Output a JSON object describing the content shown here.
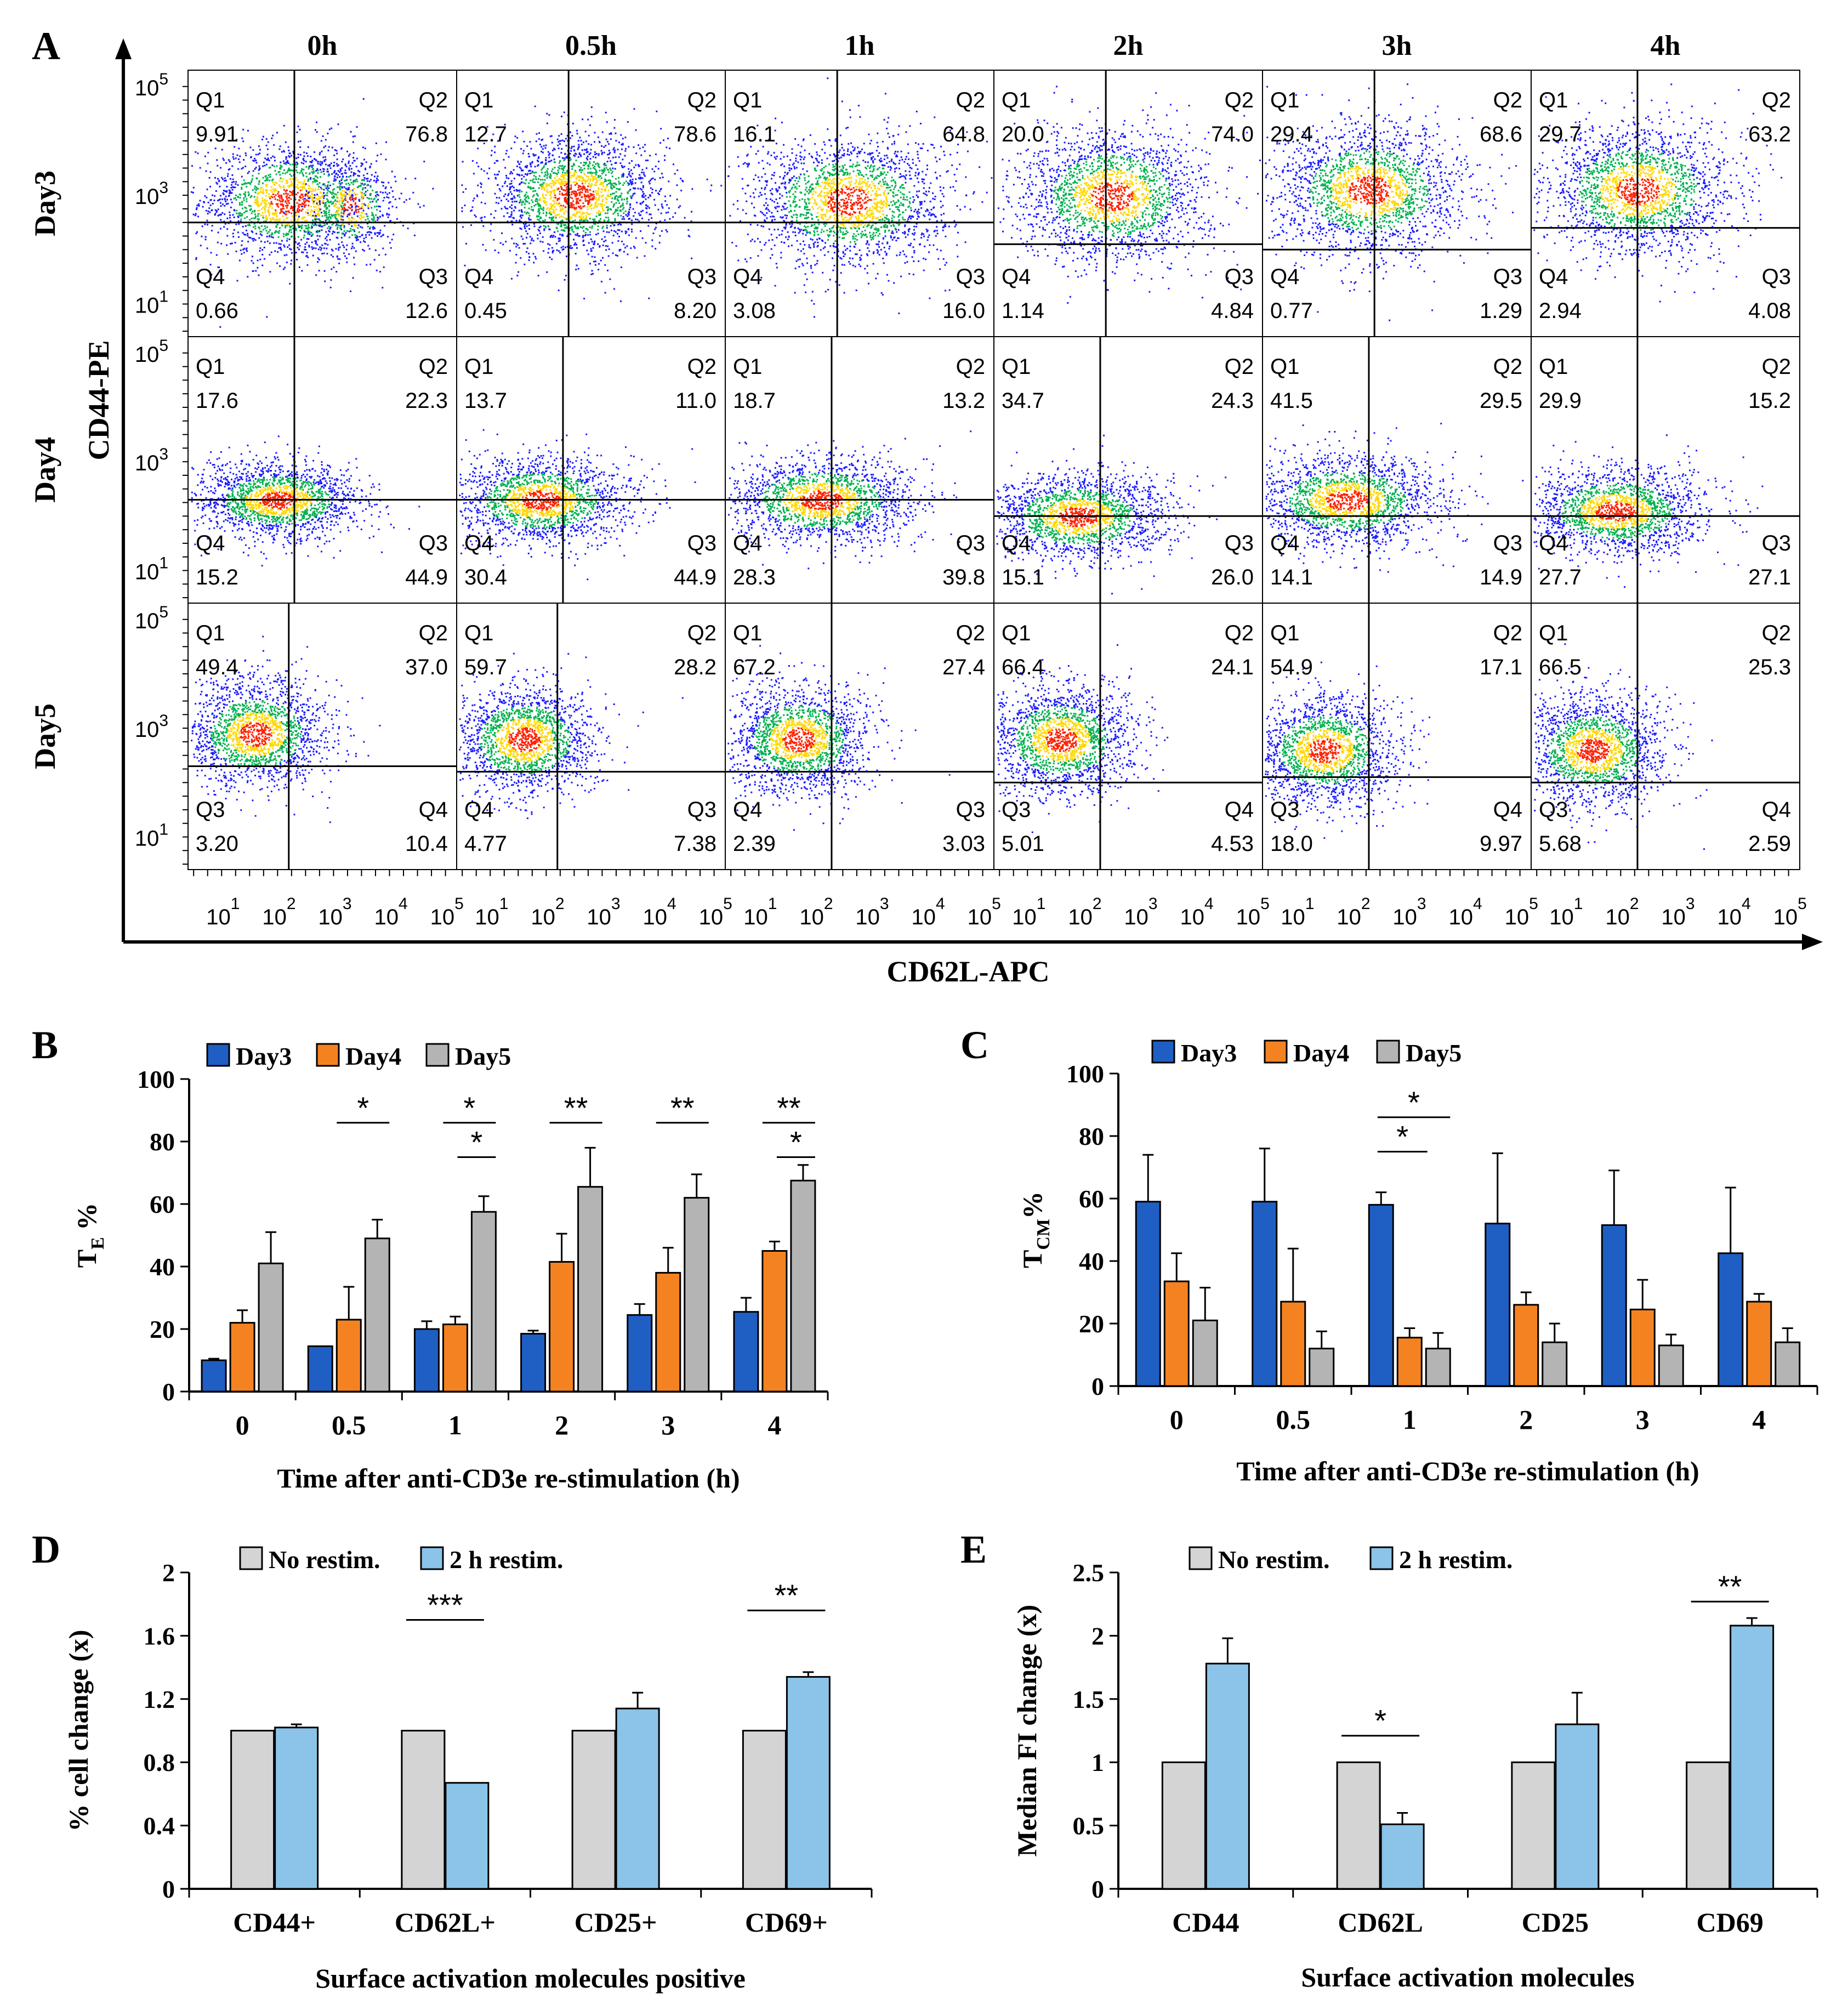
{
  "colors": {
    "day3": "#1f5fc4",
    "day4": "#f58220",
    "day5": "#b4b4b4",
    "norestim": "#d4d4d4",
    "restim": "#8cc3e8",
    "flow_low": "#1a1aff",
    "flow_mid": "#00b050",
    "flow_high": "#ffd700",
    "flow_peak": "#ff2000"
  },
  "chart_data": [
    {
      "panel": "A",
      "type": "scatter",
      "subtype": "flow-cytometry-grid",
      "xlabel": "CD62L-APC",
      "ylabel": "CD44-PE",
      "columns": [
        "0h",
        "0.5h",
        "1h",
        "2h",
        "3h",
        "4h"
      ],
      "rows": [
        "Day3",
        "Day4",
        "Day5"
      ],
      "y_ticks": [
        {
          "base": "10",
          "exp": "5",
          "v": 5
        },
        {
          "base": "10",
          "exp": "3",
          "v": 3
        },
        {
          "base": "10",
          "exp": "1",
          "v": 1
        }
      ],
      "x_ticks": [
        {
          "base": "10",
          "exp": "1",
          "v": 1
        },
        {
          "base": "10",
          "exp": "2",
          "v": 2
        },
        {
          "base": "10",
          "exp": "3",
          "v": 3
        },
        {
          "base": "10",
          "exp": "4",
          "v": 4
        },
        {
          "base": "10",
          "exp": "5",
          "v": 5
        }
      ],
      "axis_range": {
        "x": [
          0.4,
          5.2
        ],
        "y": [
          0.4,
          5.3
        ]
      },
      "gates": [
        [
          [
            2.3,
            2.5
          ],
          [
            2.4,
            2.5
          ],
          [
            2.4,
            2.5
          ],
          [
            2.4,
            2.1
          ],
          [
            2.4,
            2.0
          ],
          [
            2.3,
            2.4
          ]
        ],
        [
          [
            2.3,
            2.3
          ],
          [
            2.3,
            2.3
          ],
          [
            2.3,
            2.3
          ],
          [
            2.3,
            2.0
          ],
          [
            2.3,
            2.0
          ],
          [
            2.3,
            2.0
          ]
        ],
        [
          [
            2.2,
            2.3
          ],
          [
            2.2,
            2.2
          ],
          [
            2.3,
            2.2
          ],
          [
            2.3,
            2.0
          ],
          [
            2.3,
            2.1
          ],
          [
            2.3,
            2.0
          ]
        ]
      ],
      "clusters": [
        [
          [
            {
              "x": 2.2,
              "y": 2.9,
              "sx": 0.8,
              "sy": 0.55,
              "n": 1700
            },
            {
              "x": 3.3,
              "y": 2.8,
              "sx": 0.4,
              "sy": 0.45,
              "n": 500
            }
          ],
          [
            {
              "x": 2.5,
              "y": 3.0,
              "sx": 0.8,
              "sy": 0.55,
              "n": 2000
            }
          ],
          [
            {
              "x": 2.6,
              "y": 2.9,
              "sx": 0.9,
              "sy": 0.6,
              "n": 2000
            }
          ],
          [
            {
              "x": 2.5,
              "y": 3.0,
              "sx": 0.85,
              "sy": 0.6,
              "n": 2000
            }
          ],
          [
            {
              "x": 2.3,
              "y": 3.1,
              "sx": 0.85,
              "sy": 0.6,
              "n": 2000
            }
          ],
          [
            {
              "x": 2.3,
              "y": 3.1,
              "sx": 0.85,
              "sy": 0.6,
              "n": 2000
            }
          ]
        ],
        [
          [
            {
              "x": 2.0,
              "y": 2.3,
              "sx": 0.75,
              "sy": 0.35,
              "n": 1800
            }
          ],
          [
            {
              "x": 1.9,
              "y": 2.3,
              "sx": 0.8,
              "sy": 0.4,
              "n": 1800
            }
          ],
          [
            {
              "x": 2.1,
              "y": 2.3,
              "sx": 0.85,
              "sy": 0.4,
              "n": 1800
            }
          ],
          [
            {
              "x": 1.9,
              "y": 2.0,
              "sx": 0.8,
              "sy": 0.4,
              "n": 1800
            }
          ],
          [
            {
              "x": 1.9,
              "y": 2.3,
              "sx": 0.85,
              "sy": 0.42,
              "n": 1800
            }
          ],
          [
            {
              "x": 1.9,
              "y": 2.1,
              "sx": 0.8,
              "sy": 0.4,
              "n": 1800
            }
          ]
        ],
        [
          [
            {
              "x": 1.6,
              "y": 2.9,
              "sx": 0.65,
              "sy": 0.5,
              "n": 1800
            }
          ],
          [
            {
              "x": 1.6,
              "y": 2.8,
              "sx": 0.65,
              "sy": 0.5,
              "n": 1800
            }
          ],
          [
            {
              "x": 1.7,
              "y": 2.8,
              "sx": 0.65,
              "sy": 0.5,
              "n": 1800
            }
          ],
          [
            {
              "x": 1.6,
              "y": 2.8,
              "sx": 0.65,
              "sy": 0.5,
              "n": 1800
            }
          ],
          [
            {
              "x": 1.5,
              "y": 2.6,
              "sx": 0.65,
              "sy": 0.5,
              "n": 1800
            }
          ],
          [
            {
              "x": 1.5,
              "y": 2.6,
              "sx": 0.65,
              "sy": 0.5,
              "n": 1800
            }
          ]
        ]
      ],
      "quadrants": [
        [
          {
            "tl": "Q1",
            "tlv": "9.91",
            "tr": "Q2",
            "trv": "76.8",
            "bl": "Q4",
            "blv": "0.66",
            "br": "Q3",
            "brv": "12.6"
          },
          {
            "tl": "Q1",
            "tlv": "12.7",
            "tr": "Q2",
            "trv": "78.6",
            "bl": "Q4",
            "blv": "0.45",
            "br": "Q3",
            "brv": "8.20"
          },
          {
            "tl": "Q1",
            "tlv": "16.1",
            "tr": "Q2",
            "trv": "64.8",
            "bl": "Q4",
            "blv": "3.08",
            "br": "Q3",
            "brv": "16.0"
          },
          {
            "tl": "Q1",
            "tlv": "20.0",
            "tr": "Q2",
            "trv": "74.0",
            "bl": "Q4",
            "blv": "1.14",
            "br": "Q3",
            "brv": "4.84"
          },
          {
            "tl": "Q1",
            "tlv": "29.4",
            "tr": "Q2",
            "trv": "68.6",
            "bl": "Q4",
            "blv": "0.77",
            "br": "Q3",
            "brv": "1.29"
          },
          {
            "tl": "Q1",
            "tlv": "29.7",
            "tr": "Q2",
            "trv": "63.2",
            "bl": "Q4",
            "blv": "2.94",
            "br": "Q3",
            "brv": "4.08"
          }
        ],
        [
          {
            "tl": "Q1",
            "tlv": "17.6",
            "tr": "Q2",
            "trv": "22.3",
            "bl": "Q4",
            "blv": "15.2",
            "br": "Q3",
            "brv": "44.9"
          },
          {
            "tl": "Q1",
            "tlv": "13.7",
            "tr": "Q2",
            "trv": "11.0",
            "bl": "Q4",
            "blv": "30.4",
            "br": "Q3",
            "brv": "44.9"
          },
          {
            "tl": "Q1",
            "tlv": "18.7",
            "tr": "Q2",
            "trv": "13.2",
            "bl": "Q4",
            "blv": "28.3",
            "br": "Q3",
            "brv": "39.8"
          },
          {
            "tl": "Q1",
            "tlv": "34.7",
            "tr": "Q2",
            "trv": "24.3",
            "bl": "Q4",
            "blv": "15.1",
            "br": "Q3",
            "brv": "26.0"
          },
          {
            "tl": "Q1",
            "tlv": "41.5",
            "tr": "Q2",
            "trv": "29.5",
            "bl": "Q4",
            "blv": "14.1",
            "br": "Q3",
            "brv": "14.9"
          },
          {
            "tl": "Q1",
            "tlv": "29.9",
            "tr": "Q2",
            "trv": "15.2",
            "bl": "Q4",
            "blv": "27.7",
            "br": "Q3",
            "brv": "27.1"
          }
        ],
        [
          {
            "tl": "Q1",
            "tlv": "49.4",
            "tr": "Q2",
            "trv": "37.0",
            "bl": "Q3",
            "blv": "3.20",
            "br": "Q4",
            "brv": "10.4"
          },
          {
            "tl": "Q1",
            "tlv": "59.7",
            "tr": "Q2",
            "trv": "28.2",
            "bl": "Q4",
            "blv": "4.77",
            "br": "Q3",
            "brv": "7.38"
          },
          {
            "tl": "Q1",
            "tlv": "67.2",
            "tr": "Q2",
            "trv": "27.4",
            "bl": "Q4",
            "blv": "2.39",
            "br": "Q3",
            "brv": "3.03"
          },
          {
            "tl": "Q1",
            "tlv": "66.4",
            "tr": "Q2",
            "trv": "24.1",
            "bl": "Q3",
            "blv": "5.01",
            "br": "Q4",
            "brv": "4.53"
          },
          {
            "tl": "Q1",
            "tlv": "54.9",
            "tr": "Q2",
            "trv": "17.1",
            "bl": "Q3",
            "blv": "18.0",
            "br": "Q4",
            "brv": "9.97"
          },
          {
            "tl": "Q1",
            "tlv": "66.5",
            "tr": "Q2",
            "trv": "25.3",
            "bl": "Q3",
            "blv": "5.68",
            "br": "Q4",
            "brv": "2.59"
          }
        ]
      ]
    },
    {
      "panel": "B",
      "type": "bar",
      "xlabel": "Time after anti-CD3e re-stimulation (h)",
      "ylabel_main": "T",
      "ylabel_sub": "E",
      "ylabel_tail": " %",
      "categories": [
        "0",
        "0.5",
        "1",
        "2",
        "3",
        "4"
      ],
      "ylim": [
        0,
        100
      ],
      "yticks": [
        "0",
        "20",
        "40",
        "60",
        "80",
        "100"
      ],
      "legend": [
        "Day3",
        "Day4",
        "Day5"
      ],
      "series": [
        {
          "name": "Day3",
          "color_key": "day3",
          "values": [
            10,
            14.5,
            20,
            18.5,
            24.5,
            25.5
          ],
          "errors": [
            0.5,
            0,
            2.5,
            1,
            3.5,
            4.5
          ]
        },
        {
          "name": "Day4",
          "color_key": "day4",
          "values": [
            22,
            23,
            21.5,
            41.5,
            38,
            45
          ],
          "errors": [
            4,
            10.5,
            2.5,
            9,
            8,
            3
          ]
        },
        {
          "name": "Day5",
          "color_key": "day5",
          "values": [
            41,
            49,
            57.5,
            65.5,
            62,
            67.5
          ],
          "errors": [
            10,
            6,
            5,
            12.5,
            7.5,
            5
          ]
        }
      ],
      "significance": [
        {
          "cat": 1,
          "from": 1,
          "to": 2,
          "label": "*",
          "y": 86
        },
        {
          "cat": 2,
          "from": 1,
          "to": 2,
          "label": "*",
          "y": 86
        },
        {
          "cat": 2,
          "from": 1.5,
          "to": 2,
          "label": "*",
          "y": 75
        },
        {
          "cat": 3,
          "from": 1,
          "to": 2,
          "label": "**",
          "y": 86
        },
        {
          "cat": 4,
          "from": 1,
          "to": 2,
          "label": "**",
          "y": 86
        },
        {
          "cat": 5,
          "from": 1,
          "to": 2,
          "label": "**",
          "y": 86
        },
        {
          "cat": 5,
          "from": 1.5,
          "to": 2,
          "label": "*",
          "y": 75
        }
      ]
    },
    {
      "panel": "C",
      "type": "bar",
      "xlabel": "Time after anti-CD3e re-stimulation (h)",
      "ylabel_main": "T",
      "ylabel_sub": "CM",
      "ylabel_tail": "%",
      "categories": [
        "0",
        "0.5",
        "1",
        "2",
        "3",
        "4"
      ],
      "ylim": [
        0,
        100
      ],
      "yticks": [
        "0",
        "20",
        "40",
        "60",
        "80",
        "100"
      ],
      "legend": [
        "Day3",
        "Day4",
        "Day5"
      ],
      "series": [
        {
          "name": "Day3",
          "color_key": "day3",
          "values": [
            59,
            59,
            58,
            52,
            51.5,
            42.5
          ],
          "errors": [
            15,
            17,
            4,
            22.5,
            17.5,
            21
          ]
        },
        {
          "name": "Day4",
          "color_key": "day4",
          "values": [
            33.5,
            27,
            15.5,
            26,
            24.5,
            27
          ],
          "errors": [
            9,
            17,
            3,
            4,
            9.5,
            2.5
          ]
        },
        {
          "name": "Day5",
          "color_key": "day5",
          "values": [
            21,
            12,
            12,
            14,
            13,
            14
          ],
          "errors": [
            10.5,
            5.5,
            5,
            6,
            3.5,
            4.5
          ]
        }
      ],
      "significance": [
        {
          "cat": 2,
          "from": 0.3,
          "to": 2,
          "label": "*",
          "y": 86
        },
        {
          "cat": 2,
          "from": 0.3,
          "to": 1.2,
          "label": "*",
          "y": 75
        }
      ]
    },
    {
      "panel": "D",
      "type": "bar",
      "xlabel": "Surface activation molecules positive",
      "ylabel": "% cell change (x)",
      "categories": [
        "CD44+",
        "CD62L+",
        "CD25+",
        "CD69+"
      ],
      "ylim": [
        0,
        2
      ],
      "yticks": [
        "0",
        "0.4",
        "0.8",
        "1.2",
        "1.6",
        "2"
      ],
      "legend": [
        "No restim.",
        "2 h restim."
      ],
      "series": [
        {
          "name": "No restim.",
          "color_key": "norestim",
          "values": [
            1,
            1,
            1,
            1
          ],
          "errors": [
            0,
            0,
            0,
            0
          ]
        },
        {
          "name": "2 h restim.",
          "color_key": "restim",
          "values": [
            1.02,
            0.67,
            1.14,
            1.34
          ],
          "errors": [
            0.02,
            0,
            0.1,
            0.03
          ]
        }
      ],
      "significance": [
        {
          "cat": 1,
          "label": "***",
          "y": 1.7
        },
        {
          "cat": 3,
          "label": "**",
          "y": 1.76
        }
      ]
    },
    {
      "panel": "E",
      "type": "bar",
      "xlabel": "Surface activation molecules",
      "ylabel": "Median FI change (x)",
      "categories": [
        "CD44",
        "CD62L",
        "CD25",
        "CD69"
      ],
      "ylim": [
        0,
        2.5
      ],
      "yticks": [
        "0",
        "0.5",
        "1",
        "1.5",
        "2",
        "2.5"
      ],
      "legend": [
        "No restim.",
        "2 h restim."
      ],
      "series": [
        {
          "name": "No restim.",
          "color_key": "norestim",
          "values": [
            1,
            1,
            1,
            1
          ],
          "errors": [
            0,
            0,
            0,
            0
          ]
        },
        {
          "name": "2 h restim.",
          "color_key": "restim",
          "values": [
            1.78,
            0.51,
            1.3,
            2.08
          ],
          "errors": [
            0.2,
            0.09,
            0.25,
            0.06
          ]
        }
      ],
      "significance": [
        {
          "cat": 1,
          "label": "*",
          "y": 1.21
        },
        {
          "cat": 3,
          "label": "**",
          "y": 2.27
        }
      ]
    }
  ],
  "panel_labels": {
    "a": "A",
    "b": "B",
    "c": "C",
    "d": "D",
    "e": "E"
  }
}
